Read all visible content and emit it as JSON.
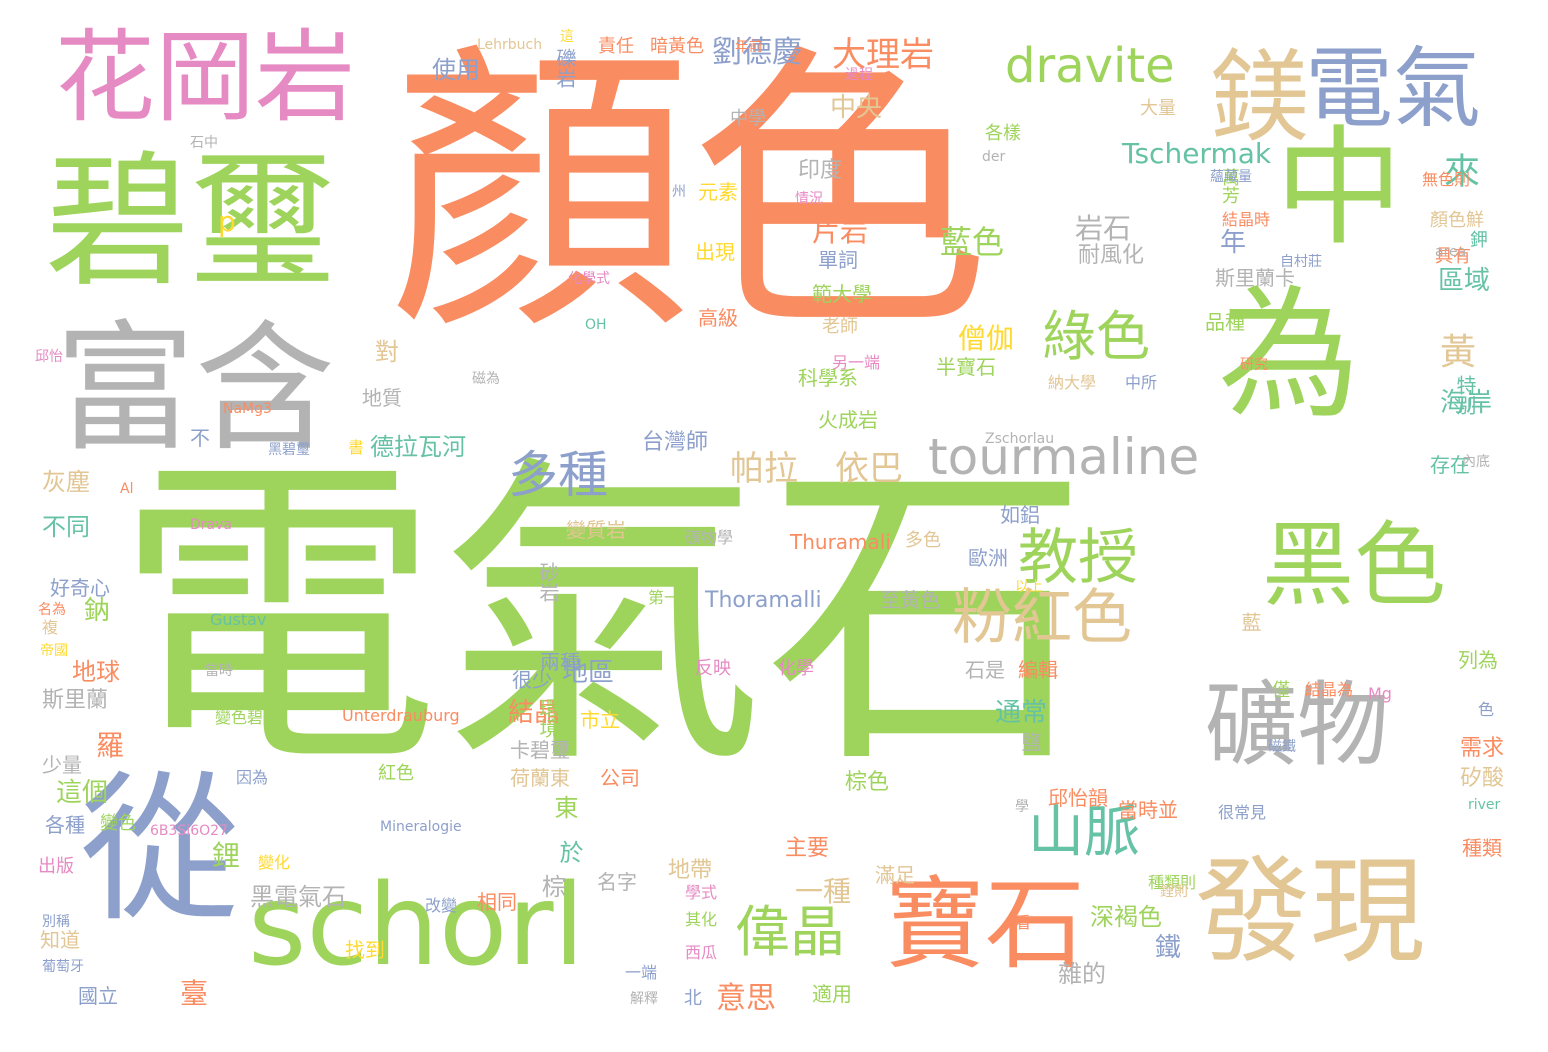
{
  "palette": {
    "green": "#9ed45b",
    "orange": "#fa8c62",
    "blue": "#8da0cb",
    "pink": "#e68ac3",
    "gray": "#b3b3b3",
    "tan": "#e2c694",
    "teal": "#66c2a5",
    "yellow": "#ffd92f"
  },
  "words": [
    {
      "text": "電氣石",
      "color": "green"
    },
    {
      "text": "顏色",
      "color": "orange"
    },
    {
      "text": "碧璽",
      "color": "green"
    },
    {
      "text": "花岡岩",
      "color": "pink"
    },
    {
      "text": "富含",
      "color": "gray"
    },
    {
      "text": "從",
      "color": "blue"
    },
    {
      "text": "schorl",
      "color": "green"
    },
    {
      "text": "中",
      "color": "green"
    },
    {
      "text": "為",
      "color": "green"
    },
    {
      "text": "電氣",
      "color": "blue"
    },
    {
      "text": "鎂",
      "color": "tan"
    },
    {
      "text": "dravite",
      "color": "green"
    },
    {
      "text": "黑色",
      "color": "green"
    },
    {
      "text": "礦物",
      "color": "gray"
    },
    {
      "text": "寶石",
      "color": "orange"
    },
    {
      "text": "發現",
      "color": "tan"
    },
    {
      "text": "tourmaline",
      "color": "gray"
    },
    {
      "text": "教授",
      "color": "green"
    },
    {
      "text": "粉紅色",
      "color": "tan"
    },
    {
      "text": "山脈",
      "color": "teal"
    },
    {
      "text": "多種",
      "color": "blue"
    },
    {
      "text": "綠色",
      "color": "green"
    },
    {
      "text": "偉晶",
      "color": "green"
    },
    {
      "text": "黃",
      "color": "tan"
    },
    {
      "text": "來",
      "color": "teal"
    },
    {
      "text": "大理岩",
      "color": "orange"
    },
    {
      "text": "劉德慶",
      "color": "blue"
    },
    {
      "text": "Tschermak",
      "color": "teal"
    },
    {
      "text": "帕拉",
      "color": "tan"
    },
    {
      "text": "依巴",
      "color": "tan"
    },
    {
      "text": "藍色",
      "color": "green"
    },
    {
      "text": "岩石",
      "color": "gray"
    },
    {
      "text": "片岩",
      "color": "orange"
    },
    {
      "text": "使用",
      "color": "blue"
    },
    {
      "text": "德拉瓦河",
      "color": "teal"
    },
    {
      "text": "年",
      "color": "blue"
    },
    {
      "text": "海岸",
      "color": "teal"
    },
    {
      "text": "區域",
      "color": "teal"
    },
    {
      "text": "中央",
      "color": "tan"
    },
    {
      "text": "黑電氣石",
      "color": "gray"
    },
    {
      "text": "一種",
      "color": "tan"
    },
    {
      "text": "地球",
      "color": "orange"
    },
    {
      "text": "不同",
      "color": "teal"
    },
    {
      "text": "結晶",
      "color": "orange"
    },
    {
      "text": "地區",
      "color": "blue"
    },
    {
      "text": "通常",
      "color": "teal"
    },
    {
      "text": "灰塵",
      "color": "tan"
    },
    {
      "text": "僧伽",
      "color": "yellow"
    },
    {
      "text": "耐風化",
      "color": "gray"
    },
    {
      "text": "印度",
      "color": "gray"
    },
    {
      "text": "科學科",
      "color": "orange"
    },
    {
      "text": "範大學",
      "color": "green"
    },
    {
      "text": "老師",
      "color": "tan"
    },
    {
      "text": "科學系",
      "color": "green"
    },
    {
      "text": "火成岩",
      "color": "green"
    },
    {
      "text": "台灣師",
      "color": "blue"
    },
    {
      "text": "斯里蘭卡",
      "color": "gray"
    },
    {
      "text": "品種",
      "color": "green"
    },
    {
      "text": "特別",
      "color": "teal"
    },
    {
      "text": "存在",
      "color": "teal"
    },
    {
      "text": "單詞",
      "color": "blue"
    },
    {
      "text": "半寶石",
      "color": "green"
    },
    {
      "text": "納大學",
      "color": "tan"
    },
    {
      "text": "中所",
      "color": "blue"
    },
    {
      "text": "Thuramali",
      "color": "orange"
    },
    {
      "text": "Thoramalli",
      "color": "blue"
    },
    {
      "text": "如鋁",
      "color": "blue"
    },
    {
      "text": "歐洲",
      "color": "blue"
    },
    {
      "text": "至黃色",
      "color": "gray"
    },
    {
      "text": "變質岩",
      "color": "tan"
    },
    {
      "text": "砂岩",
      "color": "gray"
    },
    {
      "text": "兩種",
      "color": "blue"
    },
    {
      "text": "環境",
      "color": "green"
    },
    {
      "text": "很少",
      "color": "blue"
    },
    {
      "text": "鈉",
      "color": "green"
    },
    {
      "text": "好奇心",
      "color": "blue"
    },
    {
      "text": "斯里蘭",
      "color": "gray"
    },
    {
      "text": "這個",
      "color": "green"
    },
    {
      "text": "羅",
      "color": "orange"
    },
    {
      "text": "少量",
      "color": "gray"
    },
    {
      "text": "各種",
      "color": "blue"
    },
    {
      "text": "變色",
      "color": "green"
    },
    {
      "text": "出版",
      "color": "pink"
    },
    {
      "text": "知道",
      "color": "tan"
    },
    {
      "text": "國立",
      "color": "blue"
    },
    {
      "text": "鋰",
      "color": "green"
    },
    {
      "text": "棕",
      "color": "gray"
    },
    {
      "text": "東",
      "color": "green"
    },
    {
      "text": "於",
      "color": "teal"
    },
    {
      "text": "荷蘭東",
      "color": "tan"
    },
    {
      "text": "卡碧璽",
      "color": "gray"
    },
    {
      "text": "公司",
      "color": "orange"
    },
    {
      "text": "市立",
      "color": "yellow"
    },
    {
      "text": "相同",
      "color": "orange"
    },
    {
      "text": "名字",
      "color": "gray"
    },
    {
      "text": "找到",
      "color": "yellow"
    },
    {
      "text": "臺",
      "color": "orange"
    },
    {
      "text": "意思",
      "color": "orange"
    },
    {
      "text": "北",
      "color": "blue"
    },
    {
      "text": "適用",
      "color": "green"
    },
    {
      "text": "雜的",
      "color": "gray"
    },
    {
      "text": "鐵",
      "color": "blue"
    },
    {
      "text": "深褐色",
      "color": "green"
    },
    {
      "text": "滿足",
      "color": "tan"
    },
    {
      "text": "主要",
      "color": "orange"
    },
    {
      "text": "地帶",
      "color": "tan"
    },
    {
      "text": "棕色",
      "color": "green"
    },
    {
      "text": "邱怡韻",
      "color": "orange"
    },
    {
      "text": "當時並",
      "color": "orange"
    },
    {
      "text": "需求",
      "color": "orange"
    },
    {
      "text": "矽酸",
      "color": "tan"
    },
    {
      "text": "種類",
      "color": "orange"
    },
    {
      "text": "列為",
      "color": "green"
    },
    {
      "text": "僅",
      "color": "green"
    },
    {
      "text": "結晶為",
      "color": "orange"
    },
    {
      "text": "Mg",
      "color": "pink"
    },
    {
      "text": "石是",
      "color": "gray"
    },
    {
      "text": "編輯",
      "color": "orange"
    },
    {
      "text": "藍",
      "color": "tan"
    },
    {
      "text": "鹽",
      "color": "gray"
    },
    {
      "text": "萬芳",
      "color": "green"
    },
    {
      "text": "結晶時",
      "color": "orange"
    },
    {
      "text": "顏色鮮",
      "color": "tan"
    },
    {
      "text": "具有",
      "color": "orange"
    },
    {
      "text": "鉀",
      "color": "teal"
    },
    {
      "text": "無色則",
      "color": "orange"
    },
    {
      "text": "大量",
      "color": "tan"
    },
    {
      "text": "各樣",
      "color": "green"
    },
    {
      "text": "元素",
      "color": "yellow"
    },
    {
      "text": "出現",
      "color": "yellow"
    },
    {
      "text": "高級",
      "color": "orange"
    },
    {
      "text": "責任",
      "color": "orange"
    },
    {
      "text": "暗黃色",
      "color": "orange"
    },
    {
      "text": "Lehrbuch",
      "color": "tan"
    },
    {
      "text": "中學",
      "color": "gray"
    },
    {
      "text": "過程",
      "color": "pink"
    },
    {
      "text": "礫岩",
      "color": "blue"
    },
    {
      "text": "p",
      "color": "yellow"
    },
    {
      "text": "對",
      "color": "tan"
    },
    {
      "text": "地質",
      "color": "gray"
    },
    {
      "text": "不",
      "color": "blue"
    },
    {
      "text": "多色",
      "color": "tan"
    },
    {
      "text": "化學",
      "color": "pink"
    },
    {
      "text": "反映",
      "color": "pink"
    },
    {
      "text": "第一次",
      "color": "green"
    },
    {
      "text": "礦物學",
      "color": "gray"
    },
    {
      "text": "Gustav",
      "color": "teal"
    },
    {
      "text": "Unterdrauburg",
      "color": "orange"
    },
    {
      "text": "Mineralogie",
      "color": "blue"
    },
    {
      "text": "紅色",
      "color": "green"
    },
    {
      "text": "因為",
      "color": "blue"
    },
    {
      "text": "變色碧璽",
      "color": "green"
    },
    {
      "text": "NaMg3",
      "color": "orange"
    },
    {
      "text": "OH",
      "color": "teal"
    },
    {
      "text": "Drava",
      "color": "pink"
    },
    {
      "text": "Al",
      "color": "orange"
    },
    {
      "text": "6B3Si6O27",
      "color": "pink"
    },
    {
      "text": "der",
      "color": "gray"
    },
    {
      "text": "area",
      "color": "gray"
    },
    {
      "text": "river",
      "color": "teal"
    },
    {
      "text": "Zschorlau",
      "color": "gray"
    },
    {
      "text": "自村莊",
      "color": "blue"
    },
    {
      "text": "改變",
      "color": "blue"
    },
    {
      "text": "其化",
      "color": "green"
    },
    {
      "text": "西瓜",
      "color": "pink"
    },
    {
      "text": "一端",
      "color": "blue"
    },
    {
      "text": "解釋",
      "color": "gray"
    },
    {
      "text": "色",
      "color": "blue"
    },
    {
      "text": "學",
      "color": "gray"
    },
    {
      "text": "看",
      "color": "orange"
    },
    {
      "text": "書",
      "color": "yellow"
    },
    {
      "text": "另一端",
      "color": "pink"
    },
    {
      "text": "種類則",
      "color": "green"
    },
    {
      "text": "很常見",
      "color": "blue"
    },
    {
      "text": "複",
      "color": "tan"
    },
    {
      "text": "帝國",
      "color": "yellow"
    },
    {
      "text": "變化",
      "color": "yellow"
    },
    {
      "text": "州",
      "color": "blue"
    },
    {
      "text": "石中",
      "color": "gray"
    },
    {
      "text": "這",
      "color": "yellow"
    },
    {
      "text": "磁為",
      "color": "gray"
    },
    {
      "text": "年前",
      "color": "orange"
    },
    {
      "text": "磁鐵",
      "color": "blue"
    },
    {
      "text": "邱怡",
      "color": "pink"
    },
    {
      "text": "學式",
      "color": "pink"
    },
    {
      "text": "鋰則",
      "color": "tan"
    },
    {
      "text": "內底",
      "color": "gray"
    },
    {
      "text": "別稱",
      "color": "blue"
    },
    {
      "text": "葡萄牙",
      "color": "blue"
    },
    {
      "text": "當時",
      "color": "gray"
    },
    {
      "text": "情況",
      "color": "pink"
    },
    {
      "text": "蘊藏量",
      "color": "blue"
    },
    {
      "text": "黑碧璽",
      "color": "blue"
    },
    {
      "text": "以上",
      "color": "yellow"
    },
    {
      "text": "化學式",
      "color": "pink"
    },
    {
      "text": "研究",
      "color": "orange"
    },
    {
      "text": "名為",
      "color": "orange"
    }
  ]
}
